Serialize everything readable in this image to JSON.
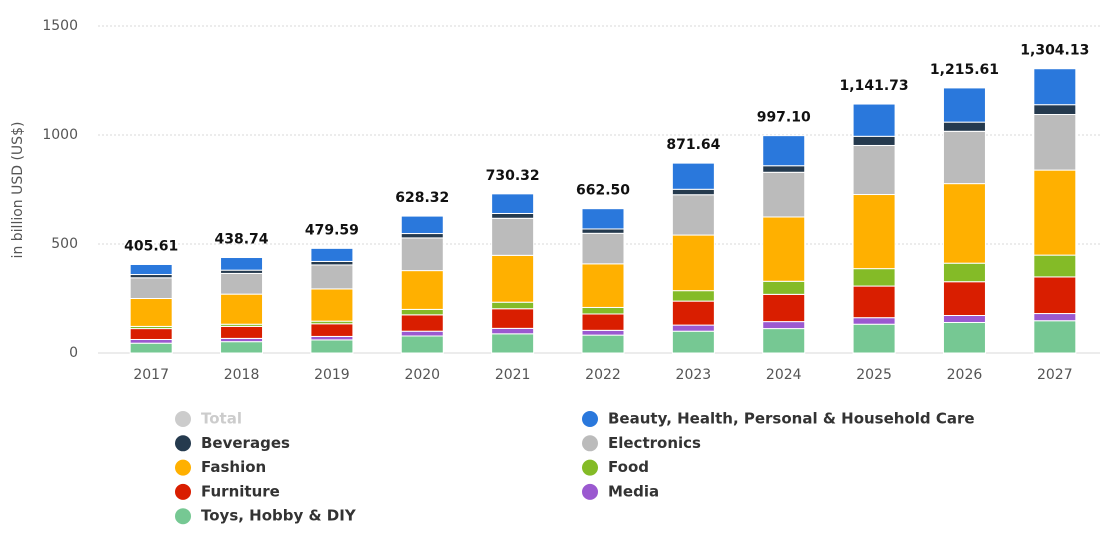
{
  "chart_data": {
    "type": "stacked_bar",
    "y_label": "in billion USD (US$)",
    "categories": [
      "2017",
      "2018",
      "2019",
      "2020",
      "2021",
      "2022",
      "2023",
      "2024",
      "2025",
      "2026",
      "2027"
    ],
    "ylim": [
      0,
      1500
    ],
    "yticks": [
      0,
      500,
      1000,
      1500
    ],
    "grid": true,
    "legend": "bottom",
    "series": [
      {
        "name": "Total",
        "color": "#cccccc",
        "visible": false,
        "values": [
          405.61,
          438.74,
          479.59,
          628.32,
          730.32,
          662.5,
          871.64,
          997.1,
          1141.73,
          1215.61,
          1304.13
        ],
        "value_labels": [
          "405.61",
          "438.74",
          "479.59",
          "628.32",
          "730.32",
          "662.50",
          "871.64",
          "997.10",
          "1,141.73",
          "1,215.61",
          "1,304.13"
        ]
      },
      {
        "name": "Beauty, Health, Personal & Household Care",
        "color": "#2a78dc",
        "values": [
          46,
          58,
          60,
          80,
          90,
          93,
          120,
          138,
          148,
          157,
          165
        ]
      },
      {
        "name": "Beverages",
        "color": "#253a4e",
        "values": [
          15,
          15,
          16,
          20,
          22,
          20,
          25,
          30,
          42,
          42,
          45
        ]
      },
      {
        "name": "Electronics",
        "color": "#bbbbbb",
        "values": [
          95,
          95,
          110,
          150,
          170,
          140,
          185,
          205,
          225,
          240,
          255
        ]
      },
      {
        "name": "Fashion",
        "color": "#ffb000",
        "values": [
          128,
          138,
          148,
          178,
          215,
          200,
          255,
          295,
          340,
          365,
          390
        ]
      },
      {
        "name": "Food",
        "color": "#84bb27",
        "values": [
          10,
          10,
          12,
          25,
          30,
          30,
          48,
          60,
          80,
          85,
          100
        ]
      },
      {
        "name": "Furniture",
        "color": "#d91e00",
        "values": [
          50,
          55,
          58,
          75,
          90,
          75,
          110,
          125,
          145,
          155,
          168
        ]
      },
      {
        "name": "Media",
        "color": "#9b59d0",
        "values": [
          17,
          15,
          16,
          22,
          25,
          22,
          28,
          32,
          30,
          32,
          33
        ]
      },
      {
        "name": "Toys, Hobby & DIY",
        "color": "#76c893",
        "values": [
          45,
          52,
          60,
          78,
          88,
          82,
          100,
          112,
          132,
          140,
          148
        ]
      }
    ]
  }
}
